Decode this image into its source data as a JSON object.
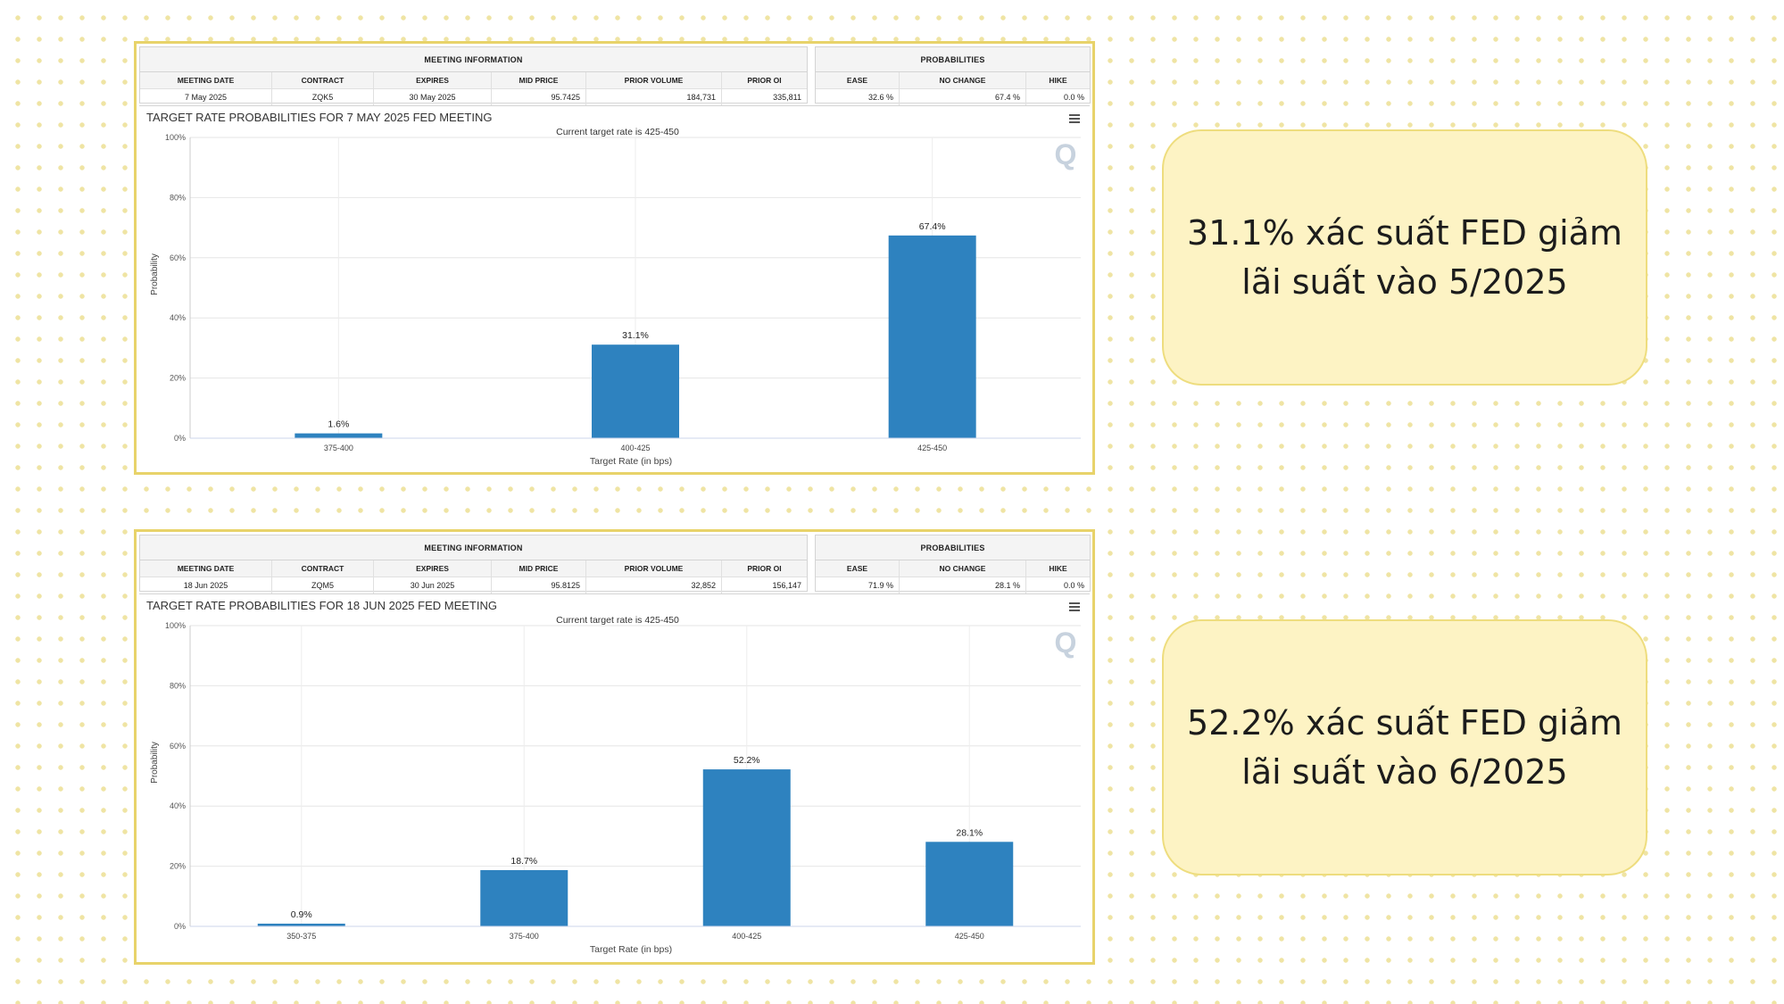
{
  "panels": [
    {
      "info": {
        "meeting_header": "MEETING INFORMATION",
        "prob_header": "PROBABILITIES",
        "columns": [
          "MEETING DATE",
          "CONTRACT",
          "EXPIRES",
          "MID PRICE",
          "PRIOR VOLUME",
          "PRIOR OI"
        ],
        "values": [
          "7 May 2025",
          "ZQK5",
          "30 May 2025",
          "95.7425",
          "184,731",
          "335,811"
        ],
        "prob_columns": [
          "EASE",
          "NO CHANGE",
          "HIKE"
        ],
        "prob_values": [
          "32.6 %",
          "67.4 %",
          "0.0 %"
        ]
      },
      "chart_data": {
        "type": "bar",
        "title": "TARGET RATE PROBABILITIES FOR 7 MAY 2025 FED MEETING",
        "subtitle": "Current target rate is 425-450",
        "xlabel": "Target Rate (in bps)",
        "ylabel": "Probability",
        "categories": [
          "375-400",
          "400-425",
          "425-450"
        ],
        "values": [
          1.6,
          31.1,
          67.4
        ],
        "data_labels": [
          "1.6%",
          "31.1%",
          "67.4%"
        ],
        "yticks": [
          "0%",
          "20%",
          "40%",
          "60%",
          "80%",
          "100%"
        ],
        "ylim": [
          0,
          100
        ],
        "watermark": "Q",
        "bar_color": "#2e82bf",
        "grid": true
      }
    },
    {
      "info": {
        "meeting_header": "MEETING INFORMATION",
        "prob_header": "PROBABILITIES",
        "columns": [
          "MEETING DATE",
          "CONTRACT",
          "EXPIRES",
          "MID PRICE",
          "PRIOR VOLUME",
          "PRIOR OI"
        ],
        "values": [
          "18 Jun 2025",
          "ZQM5",
          "30 Jun 2025",
          "95.8125",
          "32,852",
          "156,147"
        ],
        "prob_columns": [
          "EASE",
          "NO CHANGE",
          "HIKE"
        ],
        "prob_values": [
          "71.9 %",
          "28.1 %",
          "0.0 %"
        ]
      },
      "chart_data": {
        "type": "bar",
        "title": "TARGET RATE PROBABILITIES FOR 18 JUN 2025 FED MEETING",
        "subtitle": "Current target rate is 425-450",
        "xlabel": "Target Rate (in bps)",
        "ylabel": "Probability",
        "categories": [
          "350-375",
          "375-400",
          "400-425",
          "425-450"
        ],
        "values": [
          0.9,
          18.7,
          52.2,
          28.1
        ],
        "data_labels": [
          "0.9%",
          "18.7%",
          "52.2%",
          "28.1%"
        ],
        "yticks": [
          "0%",
          "20%",
          "40%",
          "60%",
          "80%",
          "100%"
        ],
        "ylim": [
          0,
          100
        ],
        "watermark": "Q",
        "bar_color": "#2e82bf",
        "grid": true
      }
    }
  ],
  "cards": [
    {
      "line1": "31.1% xác suất FED giảm",
      "line2": "lãi suất vào 5/2025"
    },
    {
      "line1": "52.2% xác suất FED giảm",
      "line2": "lãi suất vào 6/2025"
    }
  ]
}
